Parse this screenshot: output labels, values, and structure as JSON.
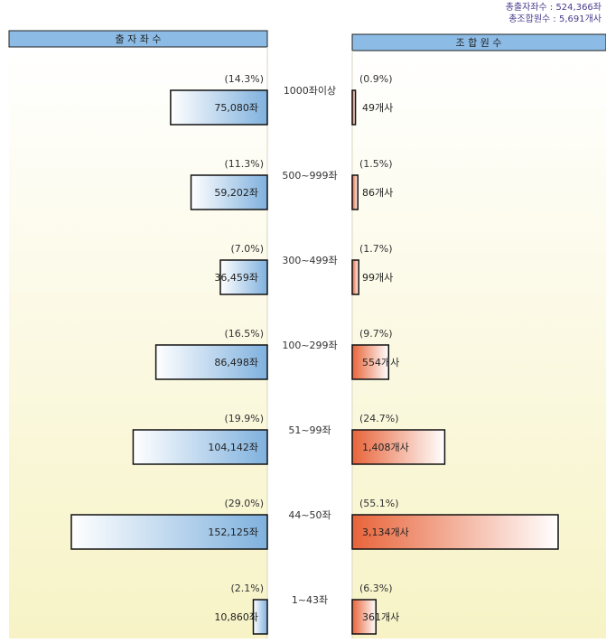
{
  "totals": {
    "seats": "총출자좌수 : 524,366좌",
    "members": "총조합원수 :  5,691개사"
  },
  "chart_data": {
    "type": "bar",
    "layout": "butterfly",
    "left_header": "출 자 좌 수",
    "right_header": "조 합 원 수",
    "categories": [
      "1000좌이상",
      "500~999좌",
      "300~499좌",
      "100~299좌",
      "51~99좌",
      "44~50좌",
      "1~43좌"
    ],
    "series": [
      {
        "name": "출 자 좌 수",
        "values": [
          75080,
          59202,
          36459,
          86498,
          104142,
          152125,
          10860
        ],
        "labels": [
          "75,080좌",
          "59,202좌",
          "36,459좌",
          "86,498좌",
          "104,142좌",
          "152,125좌",
          "10,860좌"
        ],
        "percent_labels": [
          "(14.3%)",
          "(11.3%)",
          "(7.0%)",
          "(16.5%)",
          "(19.9%)",
          "(29.0%)",
          "(2.1%)"
        ],
        "color": "#7fb1de"
      },
      {
        "name": "조 합 원 수",
        "values": [
          49,
          86,
          99,
          554,
          1408,
          3134,
          361
        ],
        "labels": [
          "49개사",
          "86개사",
          "99개사",
          "554개사",
          "1,408개사",
          "3,134개사",
          "361개사"
        ],
        "percent_labels": [
          "(0.9%)",
          "(1.5%)",
          "(1.7%)",
          "(9.7%)",
          "(24.7%)",
          "(55.1%)",
          "(6.3%)"
        ],
        "color": "#e8643a"
      }
    ],
    "colors": {
      "header_fill": "#8cbce6",
      "background_top": "#ffffff",
      "background_bottom": "#f7f3c6",
      "text": "#333333",
      "totals_text": "#4a3c8c"
    }
  }
}
